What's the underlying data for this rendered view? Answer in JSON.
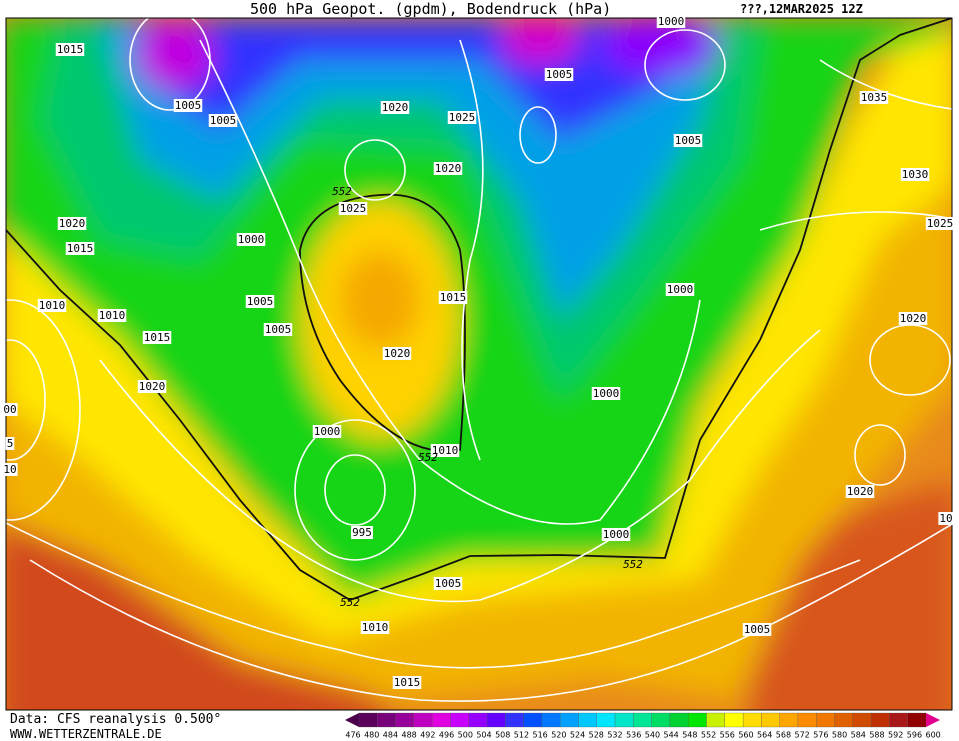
{
  "header": {
    "title": "500 hPa Geopot. (gpdm), Bodendruck (hPa)",
    "run": "???,12MAR2025 12Z"
  },
  "isobar_labels": [
    "1015",
    "1000",
    "1005",
    "1005",
    "1020",
    "1025",
    "1005",
    "1035",
    "1005",
    "1020",
    "1030",
    "1025",
    "1020",
    "1015",
    "1000",
    "1025",
    "1015",
    "1000",
    "1005",
    "1010",
    "1010",
    "1020",
    "1005",
    "1015",
    "1020",
    "1020",
    "1000",
    "1000",
    "1010",
    "1020",
    "995",
    "1000",
    "1005",
    "1010",
    "1005",
    "1015",
    "00",
    "5",
    "10",
    "10"
  ],
  "contour_552_labels": [
    "552",
    "552",
    "552",
    "552"
  ],
  "colorbar": {
    "levels": [
      476,
      480,
      484,
      488,
      492,
      496,
      500,
      504,
      508,
      512,
      516,
      520,
      524,
      528,
      532,
      536,
      540,
      544,
      548,
      552,
      556,
      560,
      564,
      568,
      572,
      576,
      580,
      584,
      588,
      592,
      596,
      600
    ]
  },
  "footer": {
    "source": "Data: CFS reanalysis 0.500°",
    "site": "WWW.WETTERZENTRALE.DE"
  }
}
